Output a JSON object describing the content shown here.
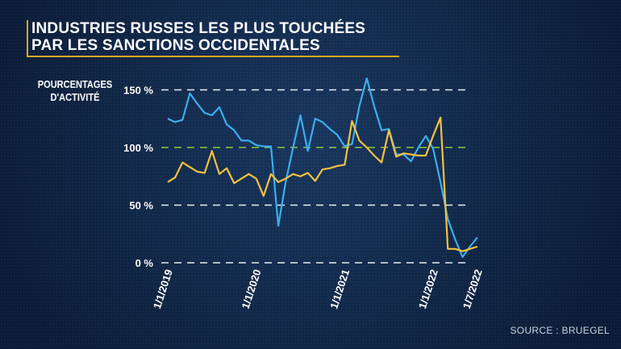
{
  "title_lines": [
    "INDUSTRIES RUSSES LES PLUS TOUCHÉES",
    "PAR LES SANCTIONS OCCIDENTALES"
  ],
  "source": "SOURCE : BRUEGEL",
  "colors": {
    "series_blue": "#3aaef0",
    "series_yellow": "#f4c23e",
    "reference_line": "#8dc63f",
    "grid": "#ffffff",
    "background": "#10284a",
    "title_rule": "#e5a823"
  },
  "chart_data": {
    "type": "line",
    "title": "INDUSTRIES RUSSES LES PLUS TOUCHÉES PAR LES SANCTIONS OCCIDENTALES",
    "ylabel": "POURCENTAGES D'ACTIVITÉ",
    "xlabel": "",
    "ylim": [
      0,
      160
    ],
    "yticks": [
      0,
      50,
      100,
      150
    ],
    "ytick_labels": [
      "0 %",
      "50 %",
      "100 %",
      "150 %"
    ],
    "reference_line": 100,
    "x_start": "2019-01",
    "x_end": "2022-07",
    "x_frequency": "monthly",
    "xtick_labels": [
      {
        "label": "1/1/2019",
        "month": "2019-01"
      },
      {
        "label": "1/1/2020",
        "month": "2020-01"
      },
      {
        "label": "1/1/2021",
        "month": "2021-01"
      },
      {
        "label": "1/1/2022",
        "month": "2022-01"
      },
      {
        "label": "1/7/2022",
        "month": "2022-07"
      }
    ],
    "grid": "horizontal dashed",
    "series": [
      {
        "color": "#3aaef0",
        "values": [
          125,
          122,
          124,
          147,
          138,
          130,
          128,
          135,
          120,
          115,
          106,
          106,
          102,
          101,
          101,
          32,
          70,
          100,
          128,
          97,
          125,
          122,
          116,
          111,
          101,
          103,
          136,
          160,
          136,
          115,
          116,
          94,
          94,
          88,
          100,
          110,
          99,
          70,
          38,
          20,
          5,
          14,
          22
        ]
      },
      {
        "color": "#f4c23e",
        "values": [
          70,
          74,
          87,
          83,
          79,
          78,
          97,
          77,
          82,
          69,
          73,
          77,
          73,
          58,
          77,
          70,
          73,
          77,
          75,
          78,
          71,
          81,
          82,
          84,
          85,
          123,
          106,
          100,
          93,
          87,
          115,
          92,
          95,
          94,
          93,
          93,
          110,
          126,
          12,
          12,
          10,
          12,
          14
        ]
      }
    ]
  }
}
